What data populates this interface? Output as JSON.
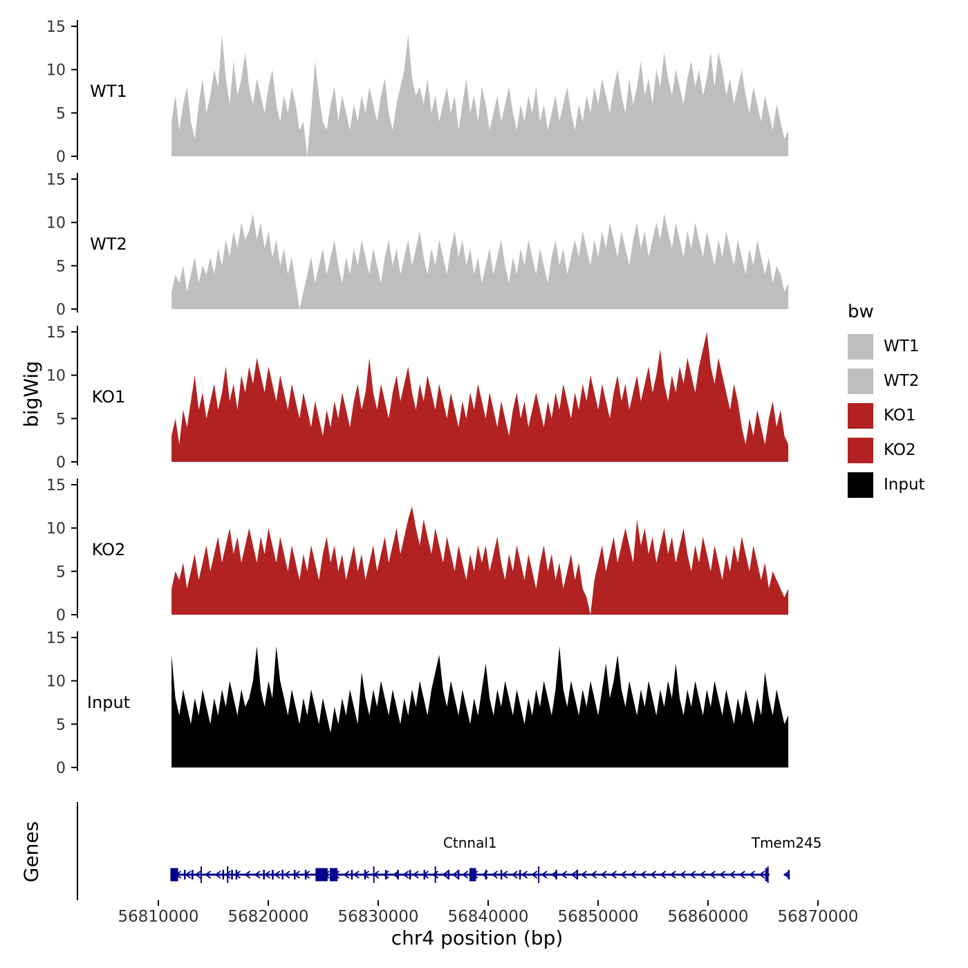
{
  "chart_data": {
    "type": "area",
    "title": "",
    "x_label": "chr4 position (bp)",
    "y_label": "bigWig",
    "x_range": [
      56810000,
      56870000
    ],
    "x_ticks": [
      56810000,
      56820000,
      56830000,
      56840000,
      56850000,
      56860000,
      56870000
    ],
    "ylim": [
      0,
      15
    ],
    "y_ticks": [
      0,
      5,
      10,
      15
    ],
    "grid": false,
    "legend": {
      "title": "bw",
      "position": "right",
      "items": [
        {
          "label": "WT1",
          "color": "#BEBEBE"
        },
        {
          "label": "WT2",
          "color": "#BEBEBE"
        },
        {
          "label": "KO1",
          "color": "#B22222"
        },
        {
          "label": "KO2",
          "color": "#B22222"
        },
        {
          "label": "Input",
          "color": "#000000"
        }
      ]
    },
    "tracks": [
      {
        "name": "WT1",
        "color": "#BEBEBE",
        "start_bp": 56811200,
        "end_bp": 56867300,
        "values": [
          4,
          7,
          3,
          6,
          8,
          4,
          2,
          6,
          9,
          5,
          7,
          10,
          8,
          14,
          9,
          6,
          11,
          7,
          9,
          12,
          8,
          6,
          9,
          7,
          5,
          8,
          10,
          6,
          4,
          7,
          5,
          8,
          6,
          3,
          4,
          0,
          5,
          11,
          7,
          4,
          3,
          6,
          8,
          4,
          7,
          5,
          3,
          6,
          4,
          7,
          5,
          8,
          6,
          4,
          7,
          9,
          5,
          3,
          6,
          8,
          10,
          14,
          9,
          7,
          8,
          6,
          9,
          5,
          7,
          4,
          6,
          8,
          5,
          7,
          3,
          6,
          9,
          5,
          7,
          4,
          8,
          6,
          3,
          5,
          7,
          4,
          6,
          8,
          5,
          3,
          6,
          4,
          7,
          5,
          8,
          4,
          6,
          3,
          5,
          7,
          4,
          6,
          8,
          5,
          3,
          6,
          4,
          7,
          5,
          8,
          6,
          9,
          7,
          5,
          8,
          10,
          7,
          5,
          9,
          6,
          8,
          11,
          7,
          9,
          6,
          10,
          8,
          12,
          9,
          7,
          10,
          8,
          6,
          9,
          11,
          8,
          10,
          7,
          9,
          12,
          8,
          12,
          10,
          7,
          9,
          6,
          8,
          10,
          7,
          5,
          8,
          6,
          4,
          7,
          5,
          3,
          6,
          4,
          2,
          3
        ]
      },
      {
        "name": "WT2",
        "color": "#BEBEBE",
        "start_bp": 56811200,
        "end_bp": 56867300,
        "values": [
          2,
          4,
          3,
          5,
          2,
          4,
          6,
          3,
          5,
          4,
          6,
          4,
          7,
          5,
          8,
          6,
          9,
          7,
          10,
          8,
          9,
          11,
          8,
          10,
          7,
          9,
          6,
          8,
          5,
          7,
          4,
          6,
          3,
          0,
          2,
          4,
          6,
          3,
          5,
          7,
          4,
          6,
          8,
          5,
          3,
          6,
          4,
          7,
          5,
          8,
          6,
          4,
          7,
          5,
          3,
          6,
          8,
          5,
          7,
          4,
          6,
          8,
          5,
          7,
          9,
          6,
          4,
          7,
          5,
          8,
          6,
          4,
          7,
          9,
          6,
          8,
          5,
          7,
          4,
          6,
          3,
          5,
          7,
          4,
          6,
          8,
          5,
          3,
          6,
          4,
          7,
          5,
          8,
          6,
          4,
          7,
          5,
          3,
          6,
          8,
          5,
          7,
          4,
          6,
          8,
          6,
          9,
          7,
          5,
          8,
          6,
          9,
          7,
          10,
          8,
          6,
          9,
          7,
          5,
          8,
          10,
          7,
          9,
          6,
          8,
          10,
          8,
          11,
          9,
          7,
          10,
          8,
          6,
          9,
          7,
          10,
          8,
          6,
          9,
          7,
          5,
          8,
          6,
          9,
          7,
          5,
          8,
          6,
          4,
          7,
          5,
          8,
          6,
          4,
          6,
          3,
          5,
          4,
          2,
          3
        ]
      },
      {
        "name": "KO1",
        "color": "#B22222",
        "start_bp": 56811200,
        "end_bp": 56867300,
        "values": [
          3,
          5,
          2,
          6,
          4,
          7,
          10,
          6,
          8,
          5,
          7,
          9,
          6,
          8,
          11,
          7,
          9,
          6,
          10,
          8,
          11,
          9,
          12,
          10,
          8,
          11,
          9,
          7,
          10,
          8,
          6,
          9,
          7,
          5,
          8,
          6,
          4,
          7,
          5,
          3,
          6,
          4,
          7,
          5,
          8,
          6,
          4,
          7,
          9,
          6,
          8,
          12,
          8,
          6,
          9,
          7,
          5,
          8,
          10,
          7,
          9,
          11,
          8,
          6,
          9,
          7,
          10,
          8,
          6,
          9,
          7,
          5,
          8,
          6,
          4,
          7,
          5,
          8,
          6,
          9,
          7,
          5,
          8,
          6,
          4,
          7,
          5,
          3,
          6,
          8,
          5,
          7,
          4,
          6,
          8,
          6,
          4,
          7,
          5,
          8,
          6,
          9,
          7,
          5,
          8,
          6,
          9,
          7,
          10,
          8,
          6,
          9,
          7,
          5,
          8,
          10,
          7,
          9,
          6,
          8,
          10,
          7,
          9,
          11,
          8,
          10,
          13,
          9,
          7,
          10,
          8,
          11,
          9,
          12,
          10,
          8,
          11,
          13,
          15,
          11,
          9,
          12,
          10,
          8,
          6,
          9,
          7,
          4,
          2,
          5,
          3,
          6,
          4,
          2,
          5,
          7,
          4,
          6,
          3,
          2
        ]
      },
      {
        "name": "KO2",
        "color": "#B22222",
        "start_bp": 56811200,
        "end_bp": 56867300,
        "values": [
          3,
          5,
          4,
          6,
          3,
          5,
          7,
          4,
          6,
          8,
          5,
          7,
          9,
          6,
          8,
          10,
          7,
          9,
          6,
          8,
          10,
          8,
          6,
          9,
          7,
          10,
          8,
          6,
          9,
          7,
          5,
          8,
          6,
          4,
          7,
          5,
          8,
          6,
          4,
          7,
          9,
          6,
          8,
          5,
          7,
          4,
          6,
          8,
          5,
          7,
          4,
          6,
          8,
          5,
          7,
          9,
          6,
          8,
          10,
          7,
          9,
          11,
          12.5,
          10,
          8,
          11,
          9,
          7,
          10,
          8,
          6,
          9,
          7,
          5,
          8,
          6,
          4,
          7,
          5,
          8,
          6,
          8,
          5,
          7,
          9,
          6,
          4,
          7,
          5,
          8,
          6,
          4,
          7,
          5,
          3,
          6,
          8,
          5,
          7,
          4,
          6,
          3,
          5,
          7,
          4,
          6,
          3,
          2,
          0,
          4,
          6,
          8,
          5,
          7,
          9,
          6,
          8,
          10,
          8,
          6,
          11,
          8,
          10,
          7,
          9,
          6,
          8,
          10,
          7,
          9,
          6,
          8,
          10,
          7,
          5,
          8,
          6,
          9,
          7,
          5,
          8,
          6,
          4,
          7,
          5,
          8,
          6,
          9,
          7,
          5,
          8,
          6,
          4,
          6,
          3,
          5,
          4,
          3,
          2,
          3
        ]
      },
      {
        "name": "Input",
        "color": "#000000",
        "start_bp": 56811200,
        "end_bp": 56867300,
        "values": [
          13,
          8,
          6,
          9,
          7,
          5,
          8,
          6,
          9,
          7,
          5,
          8,
          6,
          9,
          7,
          10,
          8,
          6,
          9,
          7,
          8,
          10,
          14,
          9,
          7,
          10,
          8,
          14,
          10,
          8,
          6,
          9,
          7,
          5,
          8,
          6,
          9,
          7,
          5,
          8,
          6,
          4,
          7,
          5,
          8,
          6,
          9,
          7,
          5,
          11,
          8,
          6,
          9,
          7,
          10,
          8,
          6,
          9,
          7,
          5,
          8,
          6,
          9,
          7,
          10,
          8,
          6,
          9,
          11,
          13,
          9,
          7,
          10,
          8,
          6,
          9,
          7,
          5,
          8,
          6,
          9,
          12,
          8,
          6,
          9,
          7,
          10,
          8,
          6,
          9,
          7,
          5,
          8,
          6,
          9,
          7,
          10,
          8,
          6,
          9,
          14,
          9,
          7,
          10,
          8,
          6,
          9,
          7,
          10,
          8,
          6,
          9,
          12,
          8,
          10,
          13,
          9,
          7,
          10,
          8,
          6,
          9,
          7,
          10,
          8,
          6,
          9,
          7,
          10,
          8,
          12,
          8,
          6,
          9,
          7,
          10,
          8,
          6,
          9,
          7,
          10,
          8,
          6,
          9,
          7,
          5,
          8,
          6,
          9,
          7,
          5,
          8,
          6,
          11,
          8,
          6,
          9,
          7,
          5,
          6
        ]
      }
    ],
    "genes_track": {
      "label": "Genes",
      "color": "#00008B",
      "genes": [
        {
          "name": "Ctnnal1",
          "strand": "-",
          "start": 56811100,
          "end": 56865600,
          "big_exons": [
            [
              56811100,
              56811800
            ],
            [
              56824300,
              56825400
            ],
            [
              56825600,
              56826300
            ],
            [
              56838300,
              56838900
            ],
            [
              56865200,
              56865500
            ]
          ],
          "exon_ticks": [
            56812400,
            56813100,
            56815900,
            56816700,
            56817100,
            56819600,
            56820400,
            56821300,
            56822400,
            56823400,
            56827600,
            56828800,
            56830700,
            56831800,
            56832900,
            56834200,
            56836400,
            56837300,
            56839800,
            56841200,
            56842900,
            56846200,
            56848100
          ],
          "tall_ticks": [
            56813900,
            56816300,
            56829600,
            56835200,
            56844600,
            56865450
          ]
        },
        {
          "name": "Tmem245",
          "strand": "-",
          "start": 56866900,
          "end": 56867400,
          "big_exons": [],
          "exon_ticks": [
            56867350
          ],
          "tall_ticks": []
        }
      ]
    }
  }
}
